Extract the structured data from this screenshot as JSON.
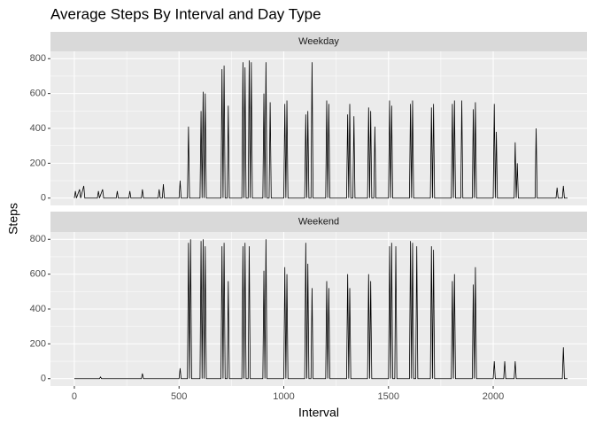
{
  "chart_data": {
    "type": "line",
    "title": "Average Steps By Interval and Day Type",
    "x_label": "Interval",
    "y_label": "Steps",
    "xlim": [
      -114,
      2448
    ],
    "xticks": [
      0,
      500,
      1000,
      1500,
      2000
    ],
    "ylim": [
      -42,
      842
    ],
    "yticks": [
      0,
      200,
      400,
      600,
      800
    ],
    "grid": true,
    "color": "#000000",
    "panels": [
      {
        "label": "Weekday",
        "x": [
          0,
          5,
          10,
          25,
          30,
          45,
          50,
          110,
          115,
          120,
          135,
          140,
          200,
          205,
          210,
          260,
          265,
          270,
          320,
          325,
          330,
          400,
          405,
          410,
          420,
          425,
          430,
          500,
          505,
          510,
          540,
          545,
          550,
          600,
          605,
          610,
          615,
          620,
          625,
          630,
          700,
          705,
          710,
          715,
          720,
          730,
          735,
          740,
          800,
          805,
          810,
          815,
          820,
          830,
          835,
          840,
          845,
          850,
          900,
          905,
          910,
          915,
          920,
          930,
          935,
          940,
          1000,
          1005,
          1010,
          1015,
          1020,
          1100,
          1105,
          1110,
          1115,
          1120,
          1130,
          1135,
          1140,
          1200,
          1205,
          1210,
          1215,
          1220,
          1300,
          1305,
          1310,
          1315,
          1320,
          1330,
          1335,
          1340,
          1400,
          1405,
          1410,
          1415,
          1420,
          1430,
          1435,
          1440,
          1500,
          1505,
          1510,
          1515,
          1520,
          1600,
          1605,
          1610,
          1615,
          1620,
          1700,
          1705,
          1710,
          1715,
          1720,
          1800,
          1805,
          1810,
          1815,
          1820,
          1845,
          1850,
          1855,
          1900,
          1905,
          1910,
          1915,
          1920,
          2000,
          2005,
          2010,
          2015,
          2020,
          2100,
          2105,
          2110,
          2115,
          2120,
          2200,
          2205,
          2210,
          2300,
          2305,
          2310,
          2330,
          2335,
          2340,
          2355
        ],
        "values": [
          0,
          40,
          0,
          50,
          0,
          70,
          0,
          0,
          40,
          0,
          50,
          0,
          0,
          40,
          0,
          0,
          40,
          0,
          0,
          50,
          0,
          0,
          50,
          0,
          0,
          80,
          0,
          0,
          100,
          0,
          0,
          410,
          0,
          0,
          500,
          0,
          610,
          0,
          600,
          0,
          0,
          740,
          0,
          760,
          0,
          0,
          530,
          0,
          0,
          780,
          0,
          750,
          0,
          0,
          790,
          0,
          780,
          0,
          0,
          600,
          0,
          780,
          0,
          0,
          550,
          0,
          0,
          540,
          0,
          560,
          0,
          0,
          480,
          0,
          500,
          0,
          0,
          780,
          0,
          0,
          560,
          0,
          540,
          0,
          0,
          480,
          0,
          540,
          0,
          0,
          470,
          0,
          0,
          520,
          0,
          500,
          0,
          0,
          410,
          0,
          0,
          560,
          0,
          530,
          0,
          0,
          540,
          0,
          560,
          0,
          0,
          520,
          0,
          540,
          0,
          0,
          540,
          0,
          560,
          0,
          0,
          560,
          0,
          0,
          510,
          0,
          550,
          0,
          0,
          540,
          0,
          380,
          0,
          0,
          320,
          0,
          200,
          0,
          0,
          400,
          0,
          0,
          60,
          0,
          0,
          70,
          0,
          0
        ]
      },
      {
        "label": "Weekend",
        "x": [
          0,
          120,
          125,
          130,
          320,
          325,
          330,
          500,
          505,
          510,
          540,
          545,
          550,
          555,
          560,
          600,
          605,
          610,
          615,
          620,
          625,
          630,
          700,
          705,
          710,
          715,
          720,
          730,
          735,
          740,
          800,
          805,
          810,
          815,
          820,
          830,
          835,
          840,
          900,
          905,
          910,
          915,
          920,
          1000,
          1005,
          1010,
          1015,
          1020,
          1100,
          1105,
          1110,
          1115,
          1120,
          1130,
          1135,
          1140,
          1200,
          1205,
          1210,
          1215,
          1220,
          1300,
          1305,
          1310,
          1315,
          1320,
          1400,
          1405,
          1410,
          1415,
          1420,
          1500,
          1505,
          1510,
          1515,
          1520,
          1530,
          1535,
          1540,
          1600,
          1605,
          1610,
          1615,
          1620,
          1630,
          1635,
          1640,
          1700,
          1705,
          1710,
          1715,
          1720,
          1800,
          1805,
          1810,
          1815,
          1820,
          1900,
          1905,
          1910,
          1915,
          1920,
          2000,
          2005,
          2010,
          2050,
          2055,
          2060,
          2100,
          2105,
          2110,
          2300,
          2330,
          2335,
          2340,
          2355
        ],
        "values": [
          0,
          0,
          10,
          0,
          0,
          30,
          0,
          0,
          60,
          0,
          0,
          780,
          0,
          800,
          0,
          0,
          790,
          0,
          800,
          0,
          760,
          0,
          0,
          760,
          0,
          780,
          0,
          0,
          560,
          0,
          0,
          760,
          0,
          780,
          0,
          0,
          760,
          0,
          0,
          620,
          0,
          800,
          0,
          0,
          640,
          0,
          600,
          0,
          0,
          780,
          0,
          660,
          0,
          0,
          520,
          0,
          0,
          560,
          0,
          520,
          0,
          0,
          600,
          0,
          520,
          0,
          0,
          600,
          0,
          560,
          0,
          0,
          760,
          0,
          780,
          0,
          0,
          760,
          0,
          0,
          790,
          0,
          780,
          0,
          0,
          760,
          0,
          0,
          760,
          0,
          740,
          0,
          0,
          560,
          0,
          600,
          0,
          0,
          540,
          0,
          640,
          0,
          0,
          100,
          0,
          0,
          100,
          0,
          0,
          100,
          0,
          0,
          0,
          180,
          0,
          0
        ]
      }
    ]
  }
}
